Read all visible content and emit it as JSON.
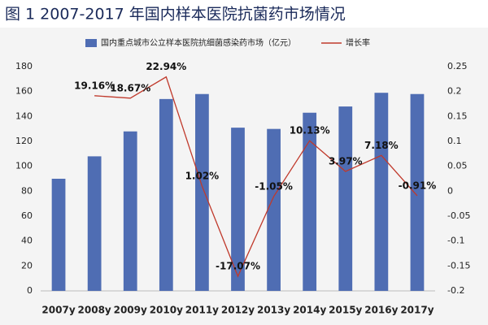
{
  "chart_data": {
    "type": "bar_line",
    "title": "图 1  2007-2017 年国内样本医院抗菌药市场情况",
    "categories": [
      "2007y",
      "2008y",
      "2009y",
      "2010y",
      "2011y",
      "2012y",
      "2013y",
      "2014y",
      "2015y",
      "2016y",
      "2017y"
    ],
    "series": [
      {
        "name": "国内重点城市公立样本医院抗细菌感染药市场（亿元）",
        "color": "#4f6db3",
        "type": "bar",
        "values": [
          90,
          108,
          128,
          154,
          158,
          131,
          130,
          143,
          148,
          159,
          158
        ]
      },
      {
        "name": "增长率",
        "color": "#c0392b",
        "type": "line",
        "axis": "y2",
        "values": [
          null,
          0.1916,
          0.1867,
          0.2294,
          0.0102,
          -0.1707,
          -0.0105,
          0.1013,
          0.0397,
          0.0718,
          -0.0091
        ],
        "value_labels": [
          null,
          "19.16%",
          "18.67%",
          "22.94%",
          "1.02%",
          "-17.07%",
          "-1.05%",
          "10.13%",
          "3.97%",
          "7.18%",
          "-0.91%"
        ]
      }
    ],
    "ylim": [
      0,
      180
    ],
    "yticks": [
      0,
      20,
      40,
      60,
      80,
      100,
      120,
      140,
      160,
      180
    ],
    "y2lim": [
      -0.2,
      0.25
    ],
    "y2ticks": [
      -0.2,
      -0.15,
      -0.1,
      -0.05,
      0,
      0.05,
      0.1,
      0.15,
      0.2,
      0.25
    ],
    "legend": "top"
  }
}
